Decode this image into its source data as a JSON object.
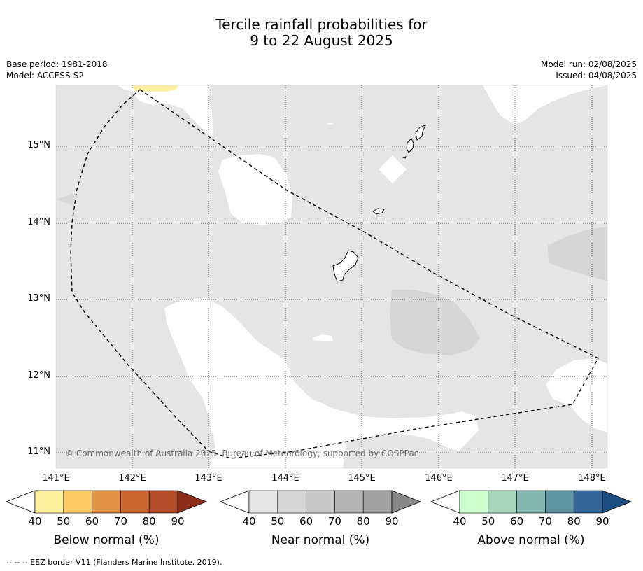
{
  "title": {
    "line1": "Tercile rainfall probabilities for",
    "line2": "9 to 22 August 2025"
  },
  "meta": {
    "base_period": "Base period: 1981-2018",
    "model": "Model: ACCESS-S2",
    "model_run": "Model run: 02/08/2025",
    "issued": "Issued: 04/08/2025"
  },
  "map": {
    "lat_labels": [
      "15°N",
      "14°N",
      "13°N",
      "12°N",
      "11°N"
    ],
    "lon_labels": [
      "141°E",
      "142°E",
      "143°E",
      "144°E",
      "145°E",
      "146°E",
      "147°E",
      "148°E"
    ],
    "copyright": "© Commonwealth of Australia 2025, Bureau of Meteorology, supported by COSPPac",
    "colors": {
      "background": "#e5e5e5",
      "near_normal_50_60": "#d6d6d6",
      "below_normal_40_50": "#fdeea0",
      "no_category": "#ffffff"
    }
  },
  "colorbars": [
    {
      "label": "Below normal (%)",
      "ticks": [
        "40",
        "50",
        "60",
        "70",
        "80",
        "90"
      ],
      "colors": [
        "#fff0a0",
        "#fdcc66",
        "#e29446",
        "#cc6633",
        "#b34c2a",
        "#8c2d1a"
      ]
    },
    {
      "label": "Near normal (%)",
      "ticks": [
        "40",
        "50",
        "60",
        "70",
        "80",
        "90"
      ],
      "colors": [
        "#e5e5e5",
        "#d6d6d6",
        "#c8c8c8",
        "#b5b5b5",
        "#a2a2a2",
        "#888888"
      ]
    },
    {
      "label": "Above normal (%)",
      "ticks": [
        "40",
        "50",
        "60",
        "70",
        "80",
        "90"
      ],
      "colors": [
        "#ccffcc",
        "#a6d6bc",
        "#84b8b0",
        "#5e94a2",
        "#336699",
        "#1a4d80"
      ]
    }
  ],
  "footer": "--  --  -- EEZ border V11 (Flanders Marine Institute, 2019)."
}
